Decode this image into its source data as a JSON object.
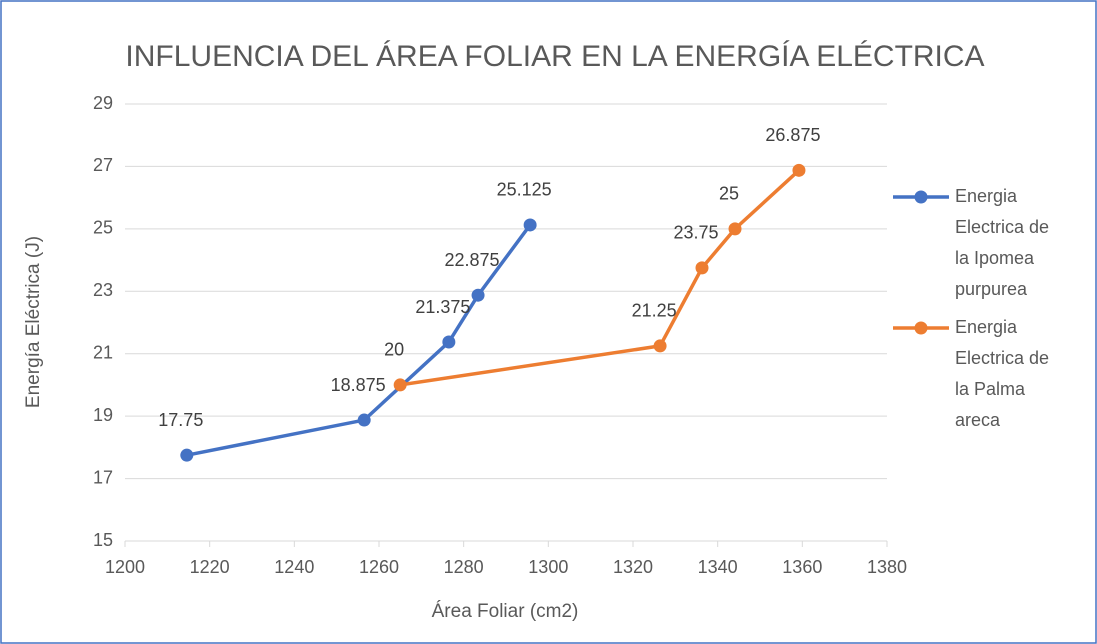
{
  "chart_data": {
    "type": "line",
    "title": "INFLUENCIA DEL ÁREA FOLIAR EN LA ENERGÍA ELÉCTRICA",
    "x_label": "Área Foliar (cm2)",
    "y_label": "Energía Eléctrica (J)",
    "xlim": [
      1200,
      1380
    ],
    "xticks": [
      1200,
      1220,
      1240,
      1260,
      1280,
      1300,
      1320,
      1340,
      1360,
      1380
    ],
    "ylim": [
      15,
      29
    ],
    "yticks": [
      15,
      17,
      19,
      21,
      23,
      25,
      27,
      29
    ],
    "grid": true,
    "legend": "right",
    "series": [
      {
        "name": "Energia Electrica de la Ipomea purpurea",
        "color": "#4472c4",
        "x": [
          1214.6,
          1256.5,
          1276.5,
          1283.4,
          1295.7
        ],
        "values": [
          17.75,
          18.875,
          21.375,
          22.875,
          25.125
        ]
      },
      {
        "name": "Energia Electrica de la Palma areca",
        "color": "#ed7d31",
        "x": [
          1265,
          1326.4,
          1336.3,
          1344.1,
          1359.2
        ],
        "values": [
          20,
          21.25,
          23.75,
          25,
          26.875
        ]
      }
    ]
  }
}
